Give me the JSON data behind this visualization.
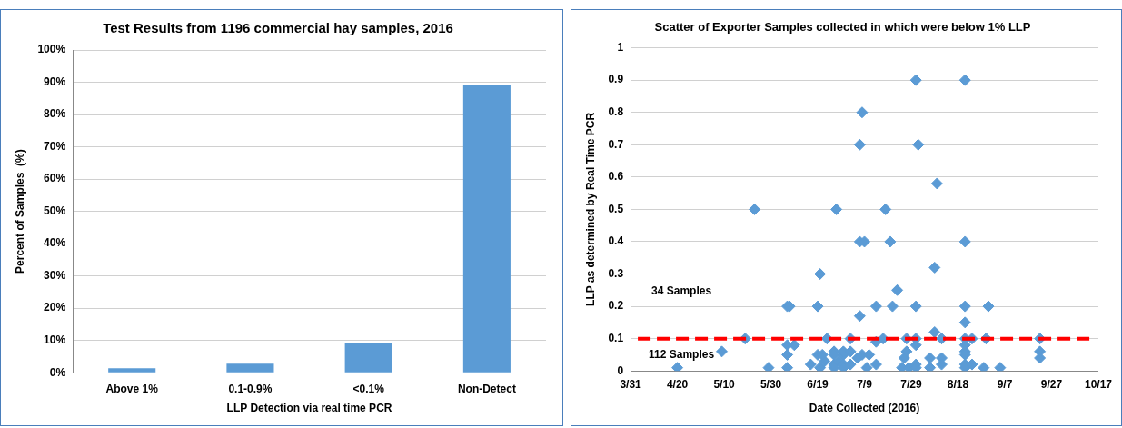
{
  "chart_data": [
    {
      "type": "bar",
      "title": "Test Results from 1196 commercial hay samples, 2016",
      "xlabel": "LLP Detection via real time PCR",
      "ylabel": "Percent of Samples  (%)",
      "categories": [
        "Above 1%",
        "0.1-0.9%",
        "<0.1%",
        "Non-Detect"
      ],
      "values": [
        1.4,
        2.8,
        9.3,
        89.2
      ],
      "color": "#5b9bd5",
      "ylim": [
        0,
        100
      ],
      "yticks": [
        {
          "value": 0,
          "label": "0%"
        },
        {
          "value": 10,
          "label": "10%"
        },
        {
          "value": 20,
          "label": "20%"
        },
        {
          "value": 30,
          "label": "30%"
        },
        {
          "value": 40,
          "label": "40%"
        },
        {
          "value": 50,
          "label": "50%"
        },
        {
          "value": 60,
          "label": "60%"
        },
        {
          "value": 70,
          "label": "70%"
        },
        {
          "value": 80,
          "label": "80%"
        },
        {
          "value": 90,
          "label": "90%"
        },
        {
          "value": 100,
          "label": "100%"
        }
      ],
      "grid": "y"
    },
    {
      "type": "scatter",
      "title": "Scatter of Exporter Samples collected in which were below 1% LLP",
      "xlabel": "Date Collected (2016)",
      "ylabel": "LLP as determined by Real Time PCR",
      "color": "#5b9bd5",
      "marker": "diamond",
      "grid": "y",
      "x": [
        "2016-04-20",
        "2016-05-09",
        "2016-05-19",
        "2016-05-23",
        "2016-05-29",
        "2016-06-06",
        "2016-06-06",
        "2016-06-07",
        "2016-06-06",
        "2016-06-06",
        "2016-06-09",
        "2016-06-16",
        "2016-06-19",
        "2016-06-20",
        "2016-06-19",
        "2016-06-20",
        "2016-06-22",
        "2016-06-21",
        "2016-06-23",
        "2016-06-26",
        "2016-06-26",
        "2016-06-27",
        "2016-06-26",
        "2016-06-26",
        "2016-06-28",
        "2016-06-30",
        "2016-06-30",
        "2016-06-30",
        "2016-06-30",
        "2016-07-03",
        "2016-07-03",
        "2016-07-03",
        "2016-07-06",
        "2016-07-07",
        "2016-07-07",
        "2016-07-09",
        "2016-07-07",
        "2016-07-08",
        "2016-07-08",
        "2016-07-11",
        "2016-07-10",
        "2016-07-14",
        "2016-07-14",
        "2016-07-14",
        "2016-07-17",
        "2016-07-18",
        "2016-07-20",
        "2016-07-21",
        "2016-07-23",
        "2016-07-25",
        "2016-07-26",
        "2016-07-27",
        "2016-07-27",
        "2016-07-28",
        "2016-07-31",
        "2016-08-01",
        "2016-07-31",
        "2016-07-31",
        "2016-07-31",
        "2016-07-31",
        "2016-07-31",
        "2016-08-06",
        "2016-08-06",
        "2016-08-08",
        "2016-08-08",
        "2016-08-09",
        "2016-08-11",
        "2016-08-11",
        "2016-08-11",
        "2016-08-21",
        "2016-08-21",
        "2016-08-21",
        "2016-08-21",
        "2016-08-21",
        "2016-08-21",
        "2016-08-21",
        "2016-08-21",
        "2016-08-21",
        "2016-08-21",
        "2016-08-24",
        "2016-08-24",
        "2016-08-29",
        "2016-08-30",
        "2016-08-31",
        "2016-09-05",
        "2016-09-22",
        "2016-09-22",
        "2016-09-22"
      ],
      "values": [
        0.01,
        0.06,
        0.1,
        0.5,
        0.01,
        0.01,
        0.2,
        0.2,
        0.05,
        0.08,
        0.08,
        0.02,
        0.2,
        0.3,
        0.05,
        0.01,
        0.03,
        0.05,
        0.1,
        0.06,
        0.01,
        0.5,
        0.05,
        0.02,
        0.03,
        0.05,
        0.02,
        0.01,
        0.06,
        0.1,
        0.06,
        0.02,
        0.04,
        0.7,
        0.4,
        0.4,
        0.17,
        0.8,
        0.05,
        0.05,
        0.01,
        0.2,
        0.09,
        0.02,
        0.1,
        0.5,
        0.4,
        0.2,
        0.25,
        0.01,
        0.04,
        0.1,
        0.06,
        0.01,
        0.9,
        0.7,
        0.2,
        0.1,
        0.08,
        0.02,
        0.01,
        0.04,
        0.01,
        0.32,
        0.12,
        0.58,
        0.1,
        0.04,
        0.02,
        0.9,
        0.4,
        0.2,
        0.15,
        0.1,
        0.08,
        0.06,
        0.05,
        0.02,
        0.01,
        0.1,
        0.02,
        0.01,
        0.1,
        0.2,
        0.01,
        0.1,
        0.06,
        0.04
      ],
      "xlim": [
        "2016-03-31",
        "2016-10-17"
      ],
      "xticks": [
        {
          "value": "2016-03-31",
          "label": "3/31"
        },
        {
          "value": "2016-04-20",
          "label": "4/20"
        },
        {
          "value": "2016-05-10",
          "label": "5/10"
        },
        {
          "value": "2016-05-30",
          "label": "5/30"
        },
        {
          "value": "2016-06-19",
          "label": "6/19"
        },
        {
          "value": "2016-07-09",
          "label": "7/9"
        },
        {
          "value": "2016-07-29",
          "label": "7/29"
        },
        {
          "value": "2016-08-18",
          "label": "8/18"
        },
        {
          "value": "2016-09-07",
          "label": "9/7"
        },
        {
          "value": "2016-09-27",
          "label": "9/27"
        },
        {
          "value": "2016-10-17",
          "label": "10/17"
        }
      ],
      "ylim": [
        0,
        1
      ],
      "yticks": [
        0,
        0.1,
        0.2,
        0.3,
        0.4,
        0.5,
        0.6,
        0.7,
        0.8,
        0.9,
        1
      ],
      "ref_lines": [
        {
          "axis": "y",
          "value": 0.1,
          "color": "#ff0000",
          "line_style": "dashed"
        }
      ],
      "annotations": [
        "34 Samples",
        "112 Samples"
      ]
    }
  ]
}
